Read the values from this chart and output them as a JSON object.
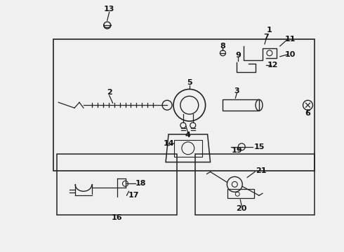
{
  "bg_color": "#f0f0f0",
  "line_color": "#222222",
  "text_color": "#111111",
  "fig_width": 4.9,
  "fig_height": 3.6,
  "dpi": 100
}
